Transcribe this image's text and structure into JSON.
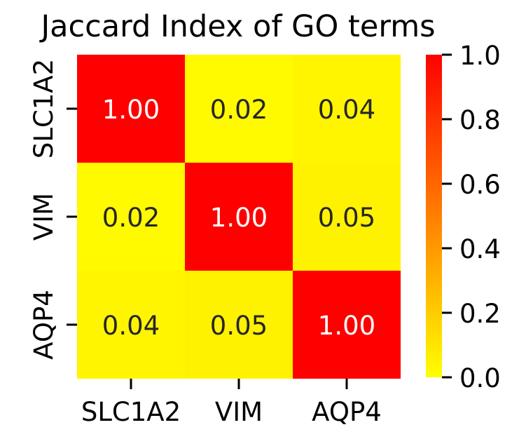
{
  "chart_data": {
    "type": "heatmap",
    "title": "Jaccard Index of GO terms",
    "xlabel": "",
    "ylabel": "",
    "x_categories": [
      "SLC1A2",
      "VIM",
      "AQP4"
    ],
    "y_categories": [
      "SLC1A2",
      "VIM",
      "AQP4"
    ],
    "values": [
      [
        1.0,
        0.02,
        0.04
      ],
      [
        0.02,
        1.0,
        0.05
      ],
      [
        0.04,
        0.05,
        1.0
      ]
    ],
    "cell_labels": [
      [
        "1.00",
        "0.02",
        "0.04"
      ],
      [
        "0.02",
        "1.00",
        "0.05"
      ],
      [
        "0.04",
        "0.05",
        "1.00"
      ]
    ],
    "colormap": {
      "name": "autumn_r",
      "low_color": "#ffff00",
      "high_color": "#ff0000",
      "range": [
        0.0,
        1.0
      ]
    },
    "colorbar": {
      "ticks": [
        0.0,
        0.2,
        0.4,
        0.6,
        0.8,
        1.0
      ],
      "tick_labels": [
        "0.0",
        "0.2",
        "0.4",
        "0.6",
        "0.8",
        "1.0"
      ]
    },
    "label_colors": {
      "light": "#ffffff",
      "dark": "#262626"
    }
  }
}
